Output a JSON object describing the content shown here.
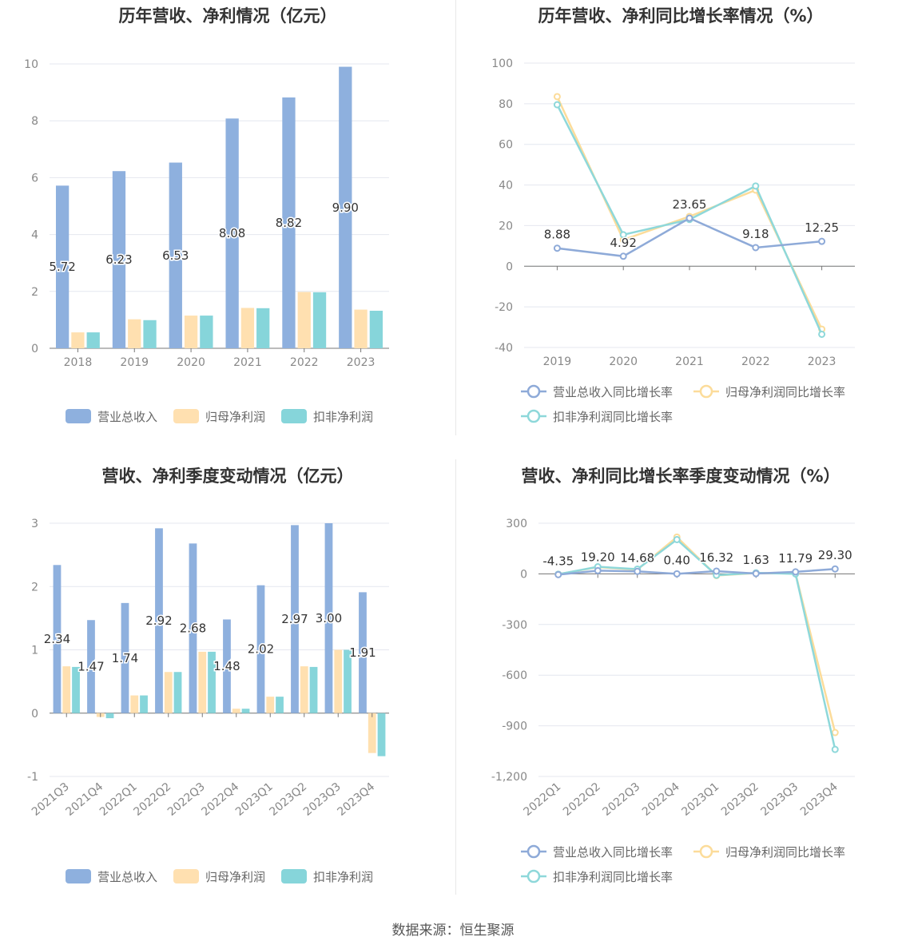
{
  "source": "数据来源：恒生聚源",
  "charts": [
    {
      "type": "bar",
      "title": "历年营收、净利情况（亿元）",
      "categories": [
        "2018",
        "2019",
        "2020",
        "2021",
        "2022",
        "2023"
      ],
      "ylim": [
        0,
        10
      ],
      "yticks": [
        "0",
        "2",
        "4",
        "6",
        "8",
        "10"
      ],
      "series": [
        {
          "name": "营业总收入",
          "color": "#8eb0de",
          "values": [
            5.72,
            6.23,
            6.53,
            8.08,
            8.82,
            9.9
          ],
          "labels": [
            "5.72",
            "6.23",
            "6.53",
            "8.08",
            "8.82",
            "9.90"
          ]
        },
        {
          "name": "归母净利润",
          "color": "#ffe0b0",
          "values": [
            0.56,
            1.02,
            1.15,
            1.42,
            1.98,
            1.36
          ]
        },
        {
          "name": "扣非净利润",
          "color": "#86d5da",
          "values": [
            0.56,
            0.99,
            1.15,
            1.41,
            1.97,
            1.32
          ]
        }
      ]
    },
    {
      "type": "line",
      "title": "历年营收、净利同比增长率情况（%）",
      "categories": [
        "2019",
        "2020",
        "2021",
        "2022",
        "2023"
      ],
      "ylim": [
        -40,
        100
      ],
      "yticks": [
        "-40",
        "-20",
        "0",
        "20",
        "40",
        "60",
        "80",
        "100"
      ],
      "series": [
        {
          "name": "营业总收入同比增长率",
          "color": "#8eaad8",
          "values": [
            8.88,
            4.92,
            23.65,
            9.18,
            12.25
          ],
          "labels": [
            "8.88",
            "4.92",
            "23.65",
            "9.18",
            "12.25"
          ]
        },
        {
          "name": "归母净利润同比增长率",
          "color": "#fcdc9a",
          "values": [
            83.5,
            13.0,
            24.5,
            37.5,
            -31.0
          ]
        },
        {
          "name": "扣非净利润同比增长率",
          "color": "#8ed8da",
          "values": [
            79.5,
            15.5,
            23.0,
            39.5,
            -33.5
          ]
        }
      ]
    },
    {
      "type": "bar",
      "title": "营收、净利季度变动情况（亿元）",
      "categories": [
        "2021Q3",
        "2021Q4",
        "2022Q1",
        "2022Q2",
        "2022Q3",
        "2022Q4",
        "2023Q1",
        "2023Q2",
        "2023Q3",
        "2023Q4"
      ],
      "ylim": [
        -1,
        3
      ],
      "yticks": [
        "-1",
        "0",
        "1",
        "2",
        "3"
      ],
      "series": [
        {
          "name": "营业总收入",
          "color": "#8eb0de",
          "values": [
            2.34,
            1.47,
            1.74,
            2.92,
            2.68,
            1.48,
            2.02,
            2.97,
            3.0,
            1.91
          ],
          "labels": [
            "2.34",
            "1.47",
            "1.74",
            "2.92",
            "2.68",
            "1.48",
            "2.02",
            "2.97",
            "3.00",
            "1.91"
          ]
        },
        {
          "name": "归母净利润",
          "color": "#ffe0b0",
          "values": [
            0.74,
            -0.06,
            0.28,
            0.65,
            0.97,
            0.07,
            0.26,
            0.74,
            1.0,
            -0.63
          ]
        },
        {
          "name": "扣非净利润",
          "color": "#86d5da",
          "values": [
            0.73,
            -0.08,
            0.28,
            0.65,
            0.97,
            0.07,
            0.26,
            0.73,
            1.0,
            -0.68
          ]
        }
      ]
    },
    {
      "type": "line",
      "title": "营收、净利同比增长率季度变动情况（%）",
      "categories": [
        "2022Q1",
        "2022Q2",
        "2022Q3",
        "2022Q4",
        "2023Q1",
        "2023Q2",
        "2023Q3",
        "2023Q4"
      ],
      "ylim": [
        -1200,
        300
      ],
      "yticks": [
        "-1,200",
        "-900",
        "-600",
        "-300",
        "0",
        "300"
      ],
      "series": [
        {
          "name": "营业总收入同比增长率",
          "color": "#8eaad8",
          "values": [
            -4.35,
            19.2,
            14.68,
            0.4,
            16.32,
            1.63,
            11.79,
            29.3
          ],
          "labels": [
            "-4.35",
            "19.20",
            "14.68",
            "0.40",
            "16.32",
            "1.63",
            "11.79",
            "29.30"
          ]
        },
        {
          "name": "归母净利润同比增长率",
          "color": "#fcdc9a",
          "values": [
            -2,
            40,
            25,
            218,
            -10,
            5,
            2,
            -940
          ]
        },
        {
          "name": "扣非净利润同比增长率",
          "color": "#8ed8da",
          "values": [
            -2,
            42,
            28,
            203,
            -8,
            6,
            0,
            -1040
          ]
        }
      ]
    }
  ]
}
